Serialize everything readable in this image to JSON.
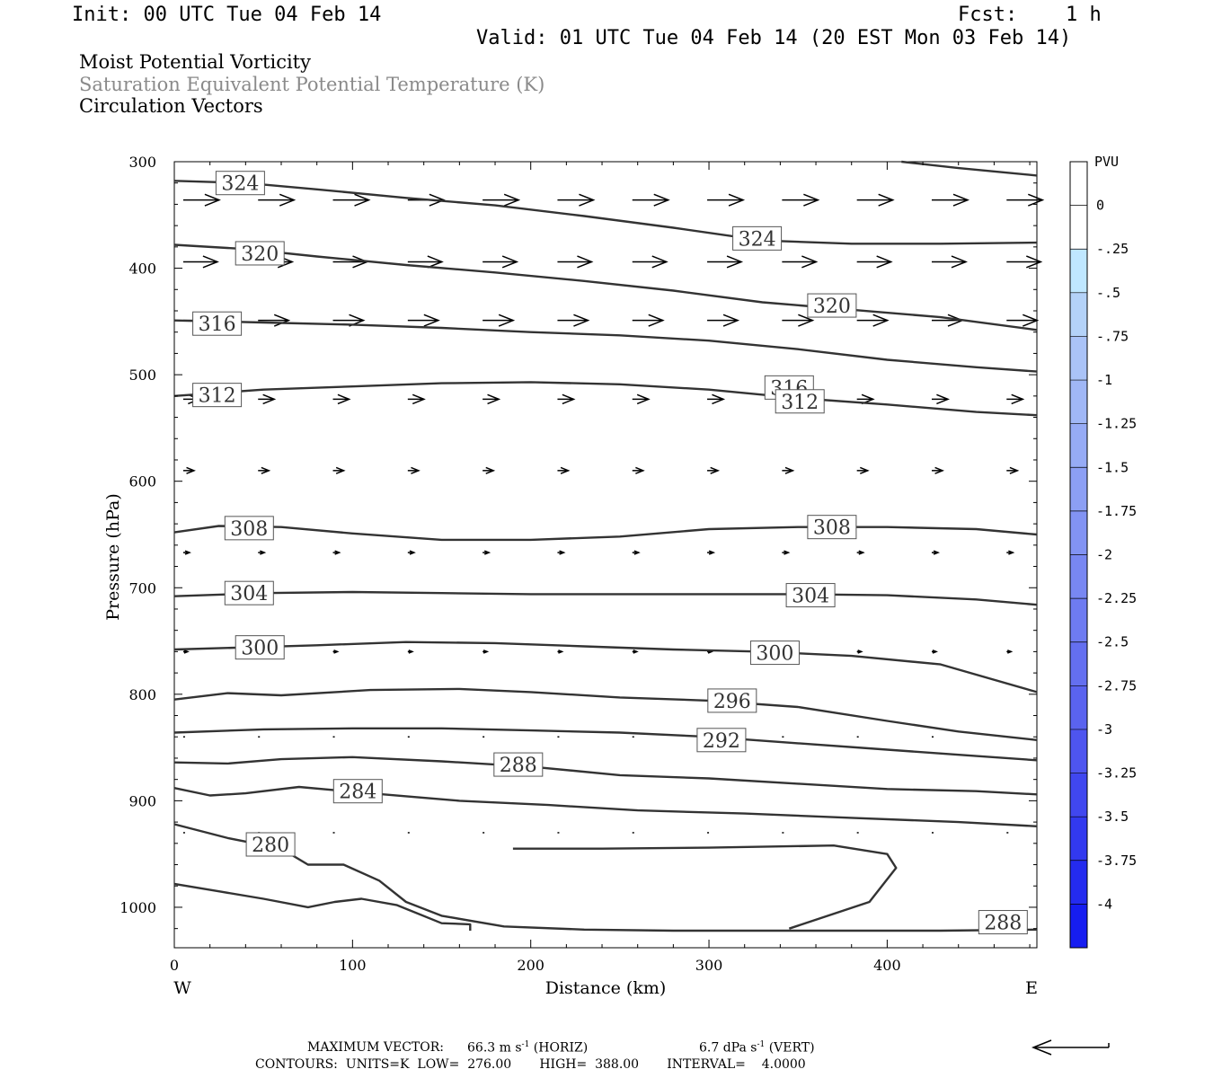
{
  "header": {
    "init": "Init: 00 UTC Tue 04 Feb 14",
    "fcst_label": "Fcst:",
    "fcst_value": "1 h",
    "valid": "Valid: 01 UTC Tue 04 Feb 14 (20 EST Mon 03 Feb 14)"
  },
  "fields": [
    "Moist Potential Vorticity",
    "Saturation Equivalent Potential Temperature (K)",
    "Circulation Vectors"
  ],
  "footer": {
    "max_vector_label": "MAXIMUM VECTOR:",
    "horiz": "66.3 m s",
    "horiz_sup": "-1",
    "horiz_unit": "(HORIZ)",
    "vert": "6.7 dPa s",
    "vert_sup": "-1",
    "vert_unit": "(VERT)",
    "contours": "CONTOURS:  UNITS=K  LOW=  276.00       HIGH=  388.00       INTERVAL=    4.0000"
  },
  "chart_data": {
    "type": "cross-section",
    "xlabel": "Distance (km)",
    "ylabel": "Pressure (hPa)",
    "xlim": [
      0,
      484
    ],
    "ylim": [
      300,
      1038
    ],
    "x_ticks": [
      0,
      100,
      200,
      300,
      400
    ],
    "y_ticks": [
      300,
      400,
      500,
      600,
      700,
      800,
      900,
      1000
    ],
    "x_ends": [
      "W",
      "E"
    ],
    "colorbar": {
      "title": "PVU",
      "labels": [
        "0",
        "-.25",
        "-.5",
        "-.75",
        "-1",
        "-1.25",
        "-1.5",
        "-1.75",
        "-2",
        "-2.25",
        "-2.5",
        "-2.75",
        "-3",
        "-3.25",
        "-3.5",
        "-3.75",
        "-4"
      ],
      "colors": [
        "#ffffff",
        "#ffffff",
        "#bfe7ff",
        "#b4d2f8",
        "#aac3f7",
        "#a0b7f6",
        "#96abf5",
        "#8c9ff4",
        "#8293f3",
        "#7887f2",
        "#6e7bf1",
        "#646ff0",
        "#5a63ef",
        "#4e55ef",
        "#4047ef",
        "#3239ef",
        "#242bef",
        "#161df0"
      ]
    },
    "contours": [
      {
        "value": 324,
        "label": "324",
        "labels_at": [
          [
            37,
            320
          ],
          [
            327,
            372
          ]
        ],
        "points": [
          [
            0,
            318
          ],
          [
            40,
            320
          ],
          [
            80,
            326
          ],
          [
            130,
            334
          ],
          [
            180,
            341
          ],
          [
            230,
            351
          ],
          [
            280,
            362
          ],
          [
            330,
            374
          ],
          [
            380,
            377
          ],
          [
            430,
            377
          ],
          [
            484,
            376
          ]
        ]
      },
      {
        "value": 324,
        "label": "",
        "labels_at": [],
        "points": [
          [
            408,
            300
          ],
          [
            440,
            306
          ],
          [
            484,
            313
          ]
        ]
      },
      {
        "value": 320,
        "label": "320",
        "labels_at": [
          [
            48,
            386
          ],
          [
            369,
            435
          ]
        ],
        "points": [
          [
            0,
            378
          ],
          [
            40,
            382
          ],
          [
            80,
            389
          ],
          [
            130,
            397
          ],
          [
            180,
            404
          ],
          [
            230,
            412
          ],
          [
            280,
            421
          ],
          [
            330,
            432
          ],
          [
            380,
            439
          ],
          [
            430,
            446
          ],
          [
            484,
            458
          ]
        ]
      },
      {
        "value": 316,
        "label": "316",
        "labels_at": [
          [
            24,
            452
          ],
          [
            345,
            512
          ]
        ],
        "points": [
          [
            0,
            449
          ],
          [
            50,
            451
          ],
          [
            100,
            453
          ],
          [
            150,
            456
          ],
          [
            200,
            460
          ],
          [
            250,
            463
          ],
          [
            300,
            468
          ],
          [
            350,
            476
          ],
          [
            400,
            486
          ],
          [
            450,
            493
          ],
          [
            484,
            497
          ]
        ]
      },
      {
        "value": 312,
        "label": "312",
        "labels_at": [
          [
            24,
            519
          ],
          [
            351,
            525
          ]
        ],
        "points": [
          [
            0,
            520
          ],
          [
            50,
            514
          ],
          [
            100,
            511
          ],
          [
            150,
            508
          ],
          [
            200,
            507
          ],
          [
            250,
            509
          ],
          [
            300,
            514
          ],
          [
            350,
            522
          ],
          [
            400,
            528
          ],
          [
            450,
            535
          ],
          [
            484,
            538
          ]
        ]
      },
      {
        "value": 308,
        "label": "308",
        "labels_at": [
          [
            42,
            644
          ],
          [
            369,
            643
          ]
        ],
        "points": [
          [
            0,
            648
          ],
          [
            25,
            642
          ],
          [
            60,
            643
          ],
          [
            100,
            649
          ],
          [
            150,
            655
          ],
          [
            200,
            655
          ],
          [
            250,
            652
          ],
          [
            300,
            645
          ],
          [
            350,
            643
          ],
          [
            400,
            643
          ],
          [
            450,
            645
          ],
          [
            484,
            650
          ]
        ]
      },
      {
        "value": 304,
        "label": "304",
        "labels_at": [
          [
            42,
            705
          ],
          [
            357,
            707
          ]
        ],
        "points": [
          [
            0,
            708
          ],
          [
            50,
            705
          ],
          [
            100,
            704
          ],
          [
            150,
            705
          ],
          [
            200,
            706
          ],
          [
            250,
            706
          ],
          [
            300,
            706
          ],
          [
            350,
            706
          ],
          [
            400,
            707
          ],
          [
            450,
            711
          ],
          [
            484,
            716
          ]
        ]
      },
      {
        "value": 300,
        "label": "300",
        "labels_at": [
          [
            48,
            756
          ],
          [
            337,
            761
          ]
        ],
        "points": [
          [
            0,
            758
          ],
          [
            40,
            756
          ],
          [
            80,
            754
          ],
          [
            130,
            751
          ],
          [
            180,
            752
          ],
          [
            230,
            755
          ],
          [
            280,
            758
          ],
          [
            330,
            760
          ],
          [
            380,
            764
          ],
          [
            430,
            772
          ],
          [
            484,
            798
          ]
        ]
      },
      {
        "value": 296,
        "label": "296",
        "labels_at": [
          [
            313,
            806
          ],
          []
        ],
        "points": [
          [
            0,
            805
          ],
          [
            30,
            799
          ],
          [
            60,
            801
          ],
          [
            110,
            796
          ],
          [
            160,
            795
          ],
          [
            200,
            798
          ],
          [
            250,
            803
          ],
          [
            300,
            806
          ],
          [
            350,
            812
          ],
          [
            400,
            825
          ],
          [
            440,
            835
          ],
          [
            484,
            843
          ]
        ]
      },
      {
        "value": 292,
        "label": "292",
        "labels_at": [
          [
            307,
            843
          ]
        ],
        "points": [
          [
            0,
            836
          ],
          [
            50,
            833
          ],
          [
            100,
            832
          ],
          [
            150,
            832
          ],
          [
            200,
            834
          ],
          [
            250,
            836
          ],
          [
            300,
            840
          ],
          [
            350,
            846
          ],
          [
            400,
            852
          ],
          [
            450,
            858
          ],
          [
            484,
            862
          ]
        ]
      },
      {
        "value": 288,
        "label": "288",
        "labels_at": [
          [
            193,
            866
          ],
          [
            465,
            1014
          ]
        ],
        "points": [
          [
            0,
            864
          ],
          [
            30,
            865
          ],
          [
            60,
            861
          ],
          [
            100,
            859
          ],
          [
            150,
            863
          ],
          [
            200,
            868
          ],
          [
            250,
            876
          ],
          [
            300,
            879
          ],
          [
            350,
            884
          ],
          [
            400,
            889
          ],
          [
            450,
            891
          ],
          [
            484,
            894
          ]
        ]
      },
      {
        "value": 284,
        "label": "284",
        "labels_at": [
          [
            103,
            891
          ]
        ],
        "points": [
          [
            0,
            888
          ],
          [
            20,
            895
          ],
          [
            40,
            893
          ],
          [
            70,
            887
          ],
          [
            110,
            893
          ],
          [
            160,
            900
          ],
          [
            210,
            904
          ],
          [
            260,
            909
          ],
          [
            320,
            912
          ],
          [
            380,
            916
          ],
          [
            440,
            920
          ],
          [
            484,
            924
          ]
        ]
      },
      {
        "value": 280,
        "label": "280",
        "labels_at": [
          [
            54,
            941
          ]
        ],
        "points": [
          [
            0,
            922
          ],
          [
            30,
            935
          ],
          [
            60,
            945
          ],
          [
            75,
            960
          ],
          [
            95,
            960
          ],
          [
            115,
            975
          ],
          [
            130,
            995
          ],
          [
            150,
            1008
          ],
          [
            185,
            1018
          ],
          [
            230,
            1021
          ],
          [
            280,
            1022
          ],
          [
            330,
            1022
          ],
          [
            380,
            1022
          ],
          [
            430,
            1022
          ],
          [
            484,
            1021
          ]
        ]
      },
      {
        "value": 288,
        "label": "",
        "labels_at": [],
        "points": [
          [
            345,
            1020
          ],
          [
            390,
            995
          ],
          [
            405,
            963
          ],
          [
            400,
            950
          ],
          [
            370,
            942
          ],
          [
            300,
            944
          ],
          [
            240,
            945
          ],
          [
            190,
            945
          ]
        ]
      },
      {
        "value": 276,
        "label": "",
        "labels_at": [],
        "points": [
          [
            0,
            978
          ],
          [
            25,
            985
          ],
          [
            50,
            992
          ],
          [
            75,
            1000
          ],
          [
            90,
            995
          ],
          [
            105,
            992
          ],
          [
            125,
            998
          ],
          [
            150,
            1015
          ],
          [
            166,
            1016
          ],
          [
            166,
            1022
          ]
        ]
      }
    ],
    "vector_rows": [
      {
        "p": 336,
        "len": 40
      },
      {
        "p": 394,
        "len": 38
      },
      {
        "p": 449,
        "len": 34
      },
      {
        "p": 523,
        "len": 18
      },
      {
        "p": 590,
        "len": 12
      },
      {
        "p": 667,
        "len": 7
      },
      {
        "p": 760,
        "len": 5
      },
      {
        "p": 840,
        "len": 2
      },
      {
        "p": 930,
        "len": 2
      }
    ]
  }
}
